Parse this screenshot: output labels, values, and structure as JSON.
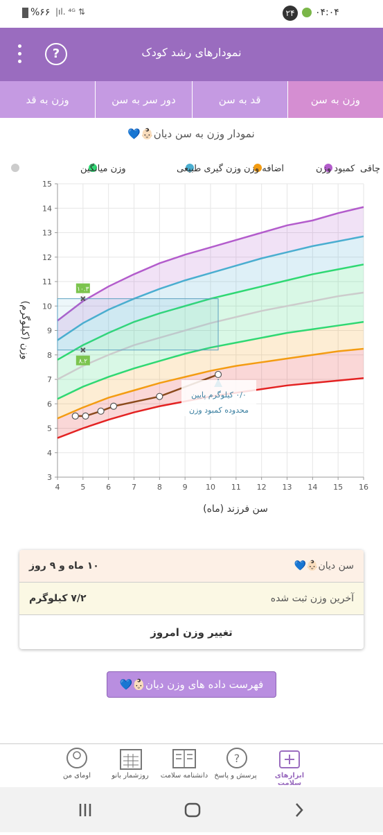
{
  "status_bar": {
    "time": "۰۴:۰۴",
    "badge": "۲۴",
    "battery": "%۶۶"
  },
  "header": {
    "title": "نمودارهای رشد کودک"
  },
  "tabs": [
    "وزن به سن",
    "قد به سن",
    "دور سر به سن",
    "وزن به قد"
  ],
  "chart_data": {
    "type": "line",
    "title": "نمودار وزن به سن دیان👶🏻💙",
    "x_label": "سن فرزند (ماه)",
    "y_label": "وزن (کیلوگرم)",
    "x": [
      4,
      5,
      6,
      7,
      8,
      9,
      10,
      11,
      12,
      13,
      14,
      15,
      16
    ],
    "series": [
      {
        "name": "چاقی",
        "color": "#b35ccc",
        "values": [
          9.4,
          10.2,
          10.8,
          11.3,
          11.75,
          12.1,
          12.4,
          12.7,
          13.0,
          13.3,
          13.5,
          13.8,
          14.05
        ]
      },
      {
        "name": "کمبود وزن",
        "color": "#f39c12",
        "values": [
          5.4,
          5.85,
          6.25,
          6.55,
          6.85,
          7.1,
          7.35,
          7.55,
          7.7,
          7.85,
          8.0,
          8.15,
          8.25
        ]
      },
      {
        "name": "اضافه وزن",
        "color": "#4aaed0",
        "values": [
          8.6,
          9.3,
          9.85,
          10.3,
          10.7,
          11.05,
          11.35,
          11.65,
          11.95,
          12.2,
          12.45,
          12.65,
          12.85
        ]
      },
      {
        "name": "وزن گیری طبیعی",
        "color": "#2fd873",
        "values": [
          7.8,
          8.4,
          8.9,
          9.35,
          9.7,
          10.0,
          10.3,
          10.55,
          10.8,
          11.05,
          11.3,
          11.5,
          11.7
        ]
      },
      {
        "name": "وزن میانگین",
        "color": "#cccccc",
        "values": [
          7.0,
          7.55,
          8.0,
          8.4,
          8.7,
          9.0,
          9.3,
          9.55,
          9.8,
          10.0,
          10.2,
          10.4,
          10.55
        ]
      },
      {
        "color": "#2fd873",
        "values": [
          6.2,
          6.7,
          7.1,
          7.45,
          7.75,
          8.05,
          8.3,
          8.5,
          8.7,
          8.9,
          9.05,
          9.2,
          9.35
        ]
      },
      {
        "color": "#e32222",
        "values": [
          4.6,
          5.0,
          5.35,
          5.65,
          5.9,
          6.1,
          6.3,
          6.45,
          6.6,
          6.75,
          6.85,
          6.95,
          7.05
        ]
      },
      {
        "color": "#8b4a1c",
        "x": [
          4.7,
          5.1,
          5.7,
          6.2,
          8,
          10.3
        ],
        "values": [
          5.5,
          5.5,
          5.7,
          5.9,
          6.3,
          7.2
        ]
      }
    ],
    "annotations": [
      {
        "x": 5,
        "y": 10.3,
        "label": "۱۰.۳"
      },
      {
        "x": 5,
        "y": 8.2,
        "label": "۸.۲"
      }
    ],
    "note": [
      "۰/۰ کیلوگرم پایین",
      "محدوده کمبود وزن"
    ],
    "xlim": [
      4,
      16
    ],
    "ylim": [
      3,
      15
    ],
    "xticks": [
      4,
      5,
      6,
      7,
      8,
      9,
      10,
      11,
      12,
      13,
      14,
      15,
      16
    ],
    "yticks": [
      3,
      4,
      5,
      6,
      7,
      8,
      9,
      10,
      11,
      12,
      13,
      14,
      15
    ],
    "grid": true
  },
  "card": {
    "rows": [
      [
        "سن دیان👶🏻💙",
        "۱۰ ماه و ۹ روز"
      ],
      [
        "آخرین وزن ثبت شده",
        "۷/۲ کیلوگرم"
      ]
    ],
    "action": "تغییر وزن امروز"
  },
  "button": "فهرست داده های وزن دیان👶🏻💙",
  "bottom_nav": [
    "ابزارهای سلامت",
    "پرسش و پاسخ",
    "دانشنامه سلامت",
    "روزشمار بانو",
    "اومای من"
  ]
}
